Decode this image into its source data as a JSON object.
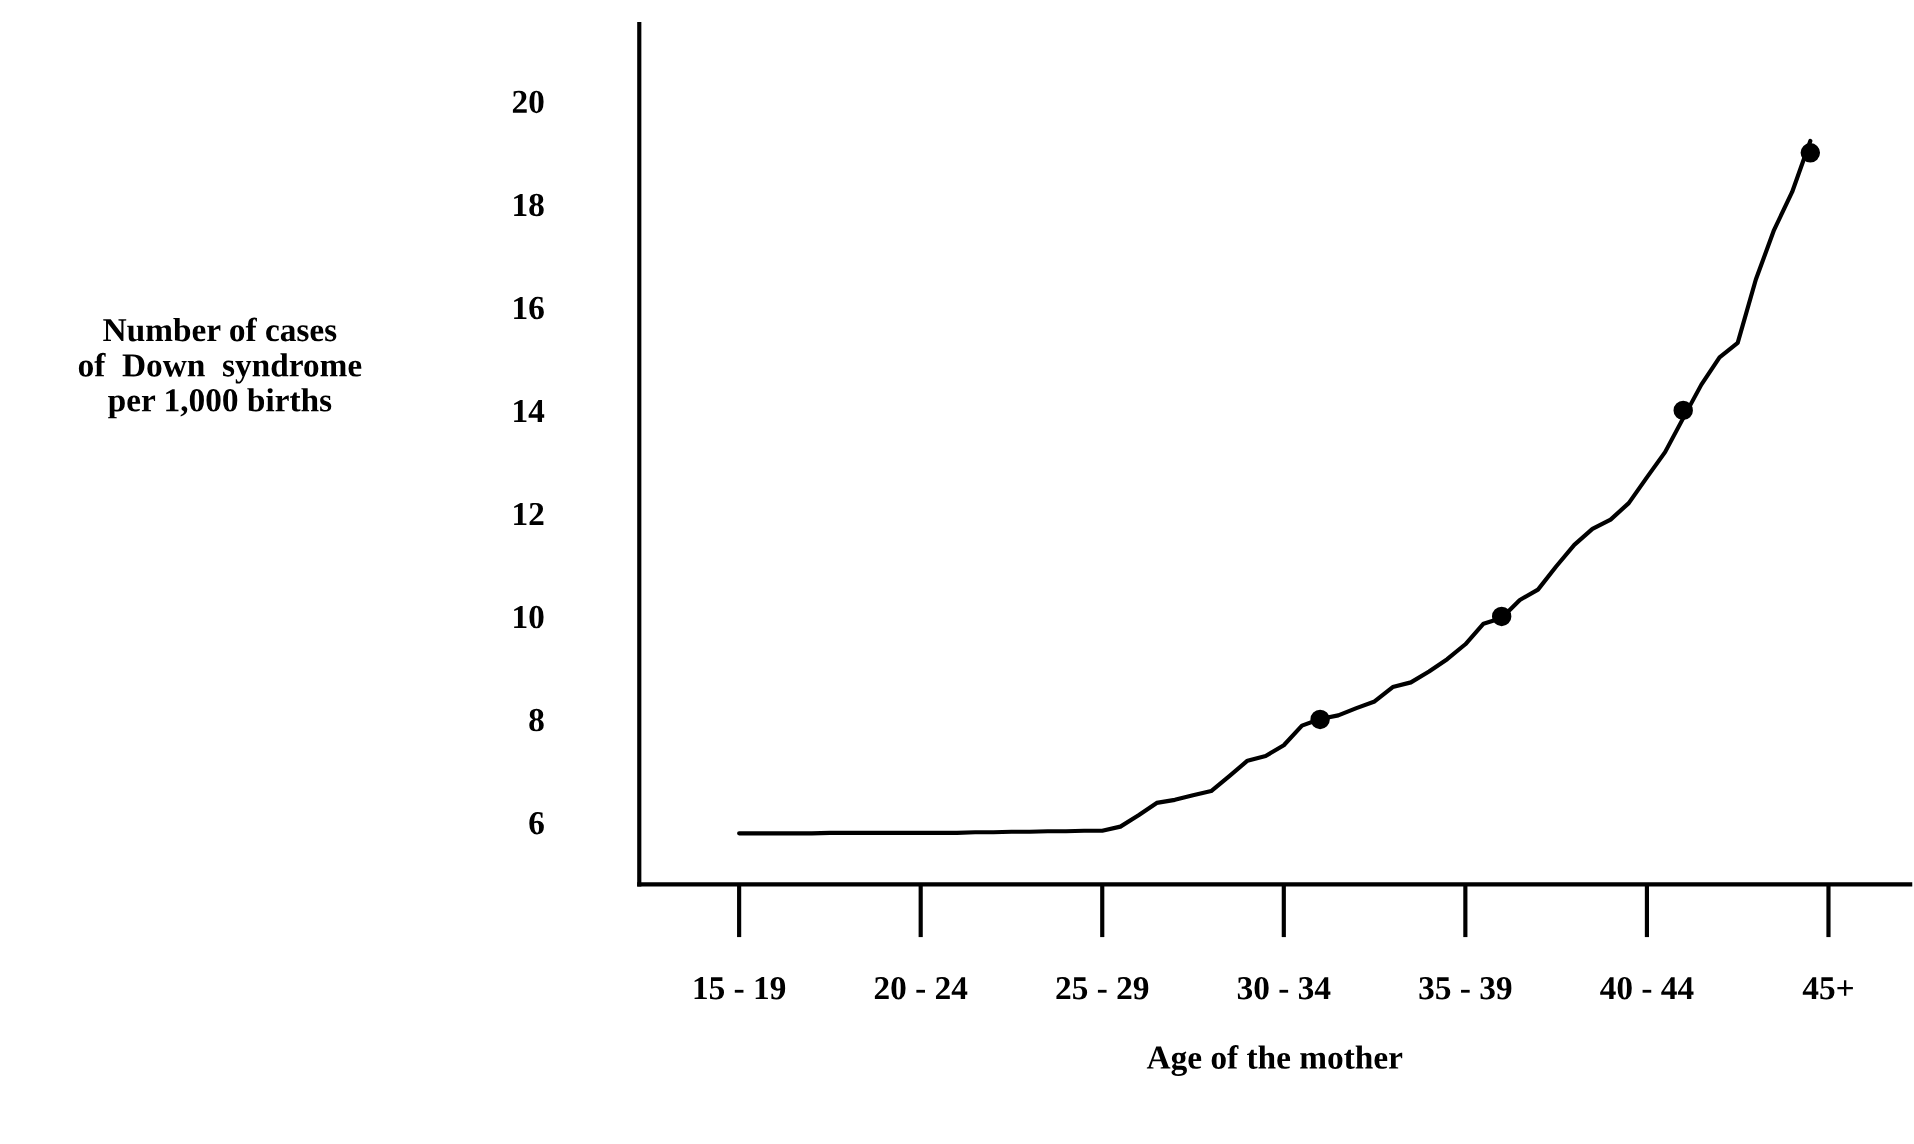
{
  "chart_data": {
    "type": "line",
    "xlabel": "Age of the mother",
    "ylabel": "Number of cases\nof  Down  syndrome\nper 1,000 births",
    "categories": [
      null,
      null,
      null,
      null,
      null,
      "15 - 19",
      null,
      null,
      null,
      null,
      null,
      null,
      null,
      null,
      null,
      "20 - 24",
      null,
      null,
      null,
      null,
      null,
      null,
      null,
      null,
      null,
      "25 - 29",
      null,
      null,
      null,
      null,
      null,
      null,
      null,
      null,
      null,
      "30 - 34",
      null,
      null,
      null,
      null,
      null,
      null,
      null,
      null,
      null,
      "35 - 39",
      null,
      null,
      null,
      null,
      null,
      null,
      null,
      null,
      null,
      "40 - 44",
      null,
      null,
      null,
      null,
      null,
      null,
      null,
      null,
      null,
      "45+",
      null,
      null,
      null,
      null
    ],
    "ylim": [
      4.8,
      21.5
    ],
    "yticks": [
      6,
      8,
      10,
      12,
      14,
      16,
      18,
      20
    ],
    "series": [
      {
        "color": "#000000",
        "line_style": "solid",
        "values": [
          null,
          null,
          null,
          null,
          null,
          5.79,
          5.79,
          5.79,
          5.79,
          5.79,
          5.8,
          5.8,
          5.8,
          5.8,
          5.8,
          5.8,
          5.8,
          5.8,
          5.81,
          5.81,
          5.82,
          5.82,
          5.83,
          5.83,
          5.84,
          5.84,
          5.92,
          6.14,
          6.38,
          6.44,
          6.53,
          6.61,
          6.9,
          7.2,
          7.29,
          7.5,
          7.88,
          8.01,
          8.08,
          8.22,
          8.35,
          8.63,
          8.72,
          8.93,
          9.17,
          9.46,
          9.86,
          9.97,
          10.32,
          10.52,
          10.97,
          11.39,
          11.7,
          11.88,
          12.2,
          12.7,
          13.19,
          13.85,
          14.5,
          15.03,
          15.31,
          16.54,
          17.5,
          18.24,
          19.23,
          null,
          null,
          null,
          null,
          null
        ]
      },
      {
        "type": "scatter",
        "color": "#000000",
        "marker": "circle",
        "values": [
          null,
          null,
          null,
          null,
          null,
          null,
          null,
          null,
          null,
          null,
          null,
          null,
          null,
          null,
          null,
          null,
          null,
          null,
          null,
          null,
          null,
          null,
          null,
          null,
          null,
          null,
          null,
          null,
          null,
          null,
          null,
          null,
          null,
          null,
          null,
          null,
          null,
          8,
          null,
          null,
          null,
          null,
          null,
          null,
          null,
          null,
          null,
          10,
          null,
          null,
          null,
          null,
          null,
          null,
          null,
          null,
          null,
          14,
          null,
          null,
          null,
          null,
          null,
          null,
          19,
          null,
          null,
          null,
          null,
          null
        ]
      }
    ]
  }
}
